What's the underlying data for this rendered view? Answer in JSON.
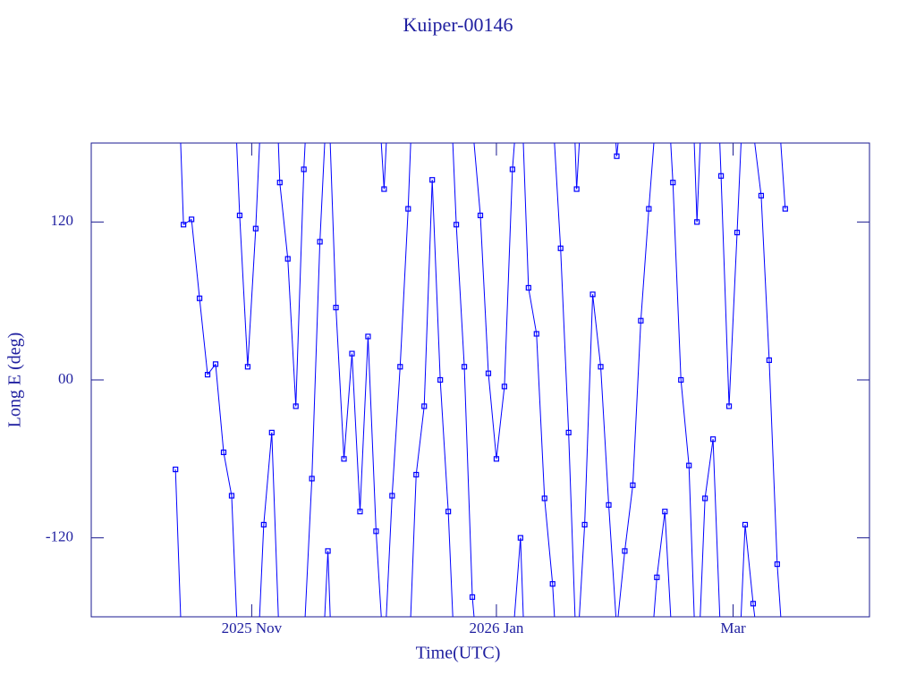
{
  "chart_data": {
    "type": "line",
    "title": "Kuiper-00146",
    "x_label": "Time(UTC)",
    "y_label": "Long E (deg)",
    "xlim": [
      "2025-09-22",
      "2026-04-04"
    ],
    "xticks": [
      {
        "value": "2025-11-01",
        "label": "2025 Nov"
      },
      {
        "value": "2026-01-01",
        "label": "2026 Jan"
      },
      {
        "value": "2026-03-01",
        "label": "Mar"
      }
    ],
    "ylim": [
      -180,
      180
    ],
    "yticks": [
      -120,
      {
        "value": 0,
        "label": "00"
      },
      120
    ],
    "series": [
      {
        "name": "Kuiper-00146",
        "color": "#0000ff",
        "x": [
          "2025-10-13",
          "2025-10-15",
          "2025-10-17",
          "2025-10-19",
          "2025-10-21",
          "2025-10-23",
          "2025-10-25",
          "2025-10-27",
          "2025-10-29",
          "2025-10-31",
          "2025-11-02",
          "2025-11-04",
          "2025-11-06",
          "2025-11-08",
          "2025-11-10",
          "2025-11-12",
          "2025-11-14",
          "2025-11-16",
          "2025-11-18",
          "2025-11-20",
          "2025-11-22",
          "2025-11-24",
          "2025-11-26",
          "2025-11-28",
          "2025-11-30",
          "2025-12-02",
          "2025-12-04",
          "2025-12-06",
          "2025-12-08",
          "2025-12-10",
          "2025-12-12",
          "2025-12-14",
          "2025-12-16",
          "2025-12-18",
          "2025-12-20",
          "2025-12-22",
          "2025-12-24",
          "2025-12-26",
          "2025-12-28",
          "2025-12-30",
          "2026-01-01",
          "2026-01-03",
          "2026-01-05",
          "2026-01-07",
          "2026-01-09",
          "2026-01-11",
          "2026-01-13",
          "2026-01-15",
          "2026-01-17",
          "2026-01-19",
          "2026-01-21",
          "2026-01-23",
          "2026-01-25",
          "2026-01-27",
          "2026-01-29",
          "2026-01-31",
          "2026-02-02",
          "2026-02-04",
          "2026-02-06",
          "2026-02-08",
          "2026-02-10",
          "2026-02-12",
          "2026-02-14",
          "2026-02-16",
          "2026-02-18",
          "2026-02-20",
          "2026-02-22",
          "2026-02-24",
          "2026-02-26",
          "2026-02-28",
          "2026-03-02",
          "2026-03-04",
          "2026-03-06",
          "2026-03-08",
          "2026-03-10",
          "2026-03-12",
          "2026-03-14"
        ],
        "values": [
          -68,
          118,
          122,
          62,
          4,
          12,
          -55,
          -88,
          125,
          10,
          115,
          -110,
          -40,
          150,
          92,
          -20,
          160,
          -75,
          105,
          -130,
          55,
          -60,
          20,
          -100,
          33,
          -115,
          145,
          -88,
          10,
          130,
          -72,
          -20,
          152,
          0,
          -100,
          118,
          10,
          -165,
          125,
          5,
          -60,
          -5,
          160,
          -120,
          70,
          35,
          -90,
          -155,
          100,
          -40,
          145,
          -110,
          65,
          10,
          -95,
          170,
          -130,
          -80,
          45,
          130,
          -150,
          -100,
          150,
          0,
          -65,
          120,
          -90,
          -45,
          155,
          -20,
          112,
          -110,
          -170,
          140,
          15,
          -140,
          130
        ]
      }
    ]
  }
}
